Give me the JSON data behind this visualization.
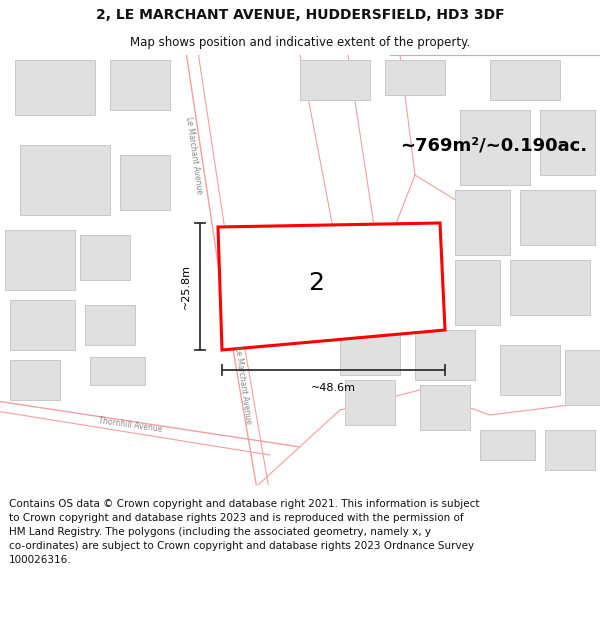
{
  "title": "2, LE MARCHANT AVENUE, HUDDERSFIELD, HD3 3DF",
  "subtitle": "Map shows position and indicative extent of the property.",
  "footer_text": "Contains OS data © Crown copyright and database right 2021. This information is subject\nto Crown copyright and database rights 2023 and is reproduced with the permission of\nHM Land Registry. The polygons (including the associated geometry, namely x, y\nco-ordinates) are subject to Crown copyright and database rights 2023 Ordnance Survey\n100026316.",
  "area_label": "~769m²/~0.190ac.",
  "width_label": "~48.6m",
  "height_label": "~25.8m",
  "plot_number": "2",
  "map_bg": "#ffffff",
  "road_color": "#f0a0a0",
  "road_lw": 0.9,
  "building_fill": "#e0e0e0",
  "building_edge": "#c8c8c8",
  "highlight_edge": "#ff0000",
  "highlight_fill": "#ffffff",
  "dim_color": "#333333",
  "text_color": "#111111",
  "title_fontsize": 10,
  "subtitle_fontsize": 8.5,
  "footer_fontsize": 7.5,
  "area_fontsize": 13,
  "dim_fontsize": 8,
  "plotnum_fontsize": 18,
  "road_label_fontsize": 5.5,
  "figsize": [
    6.0,
    6.25
  ],
  "dpi": 100
}
